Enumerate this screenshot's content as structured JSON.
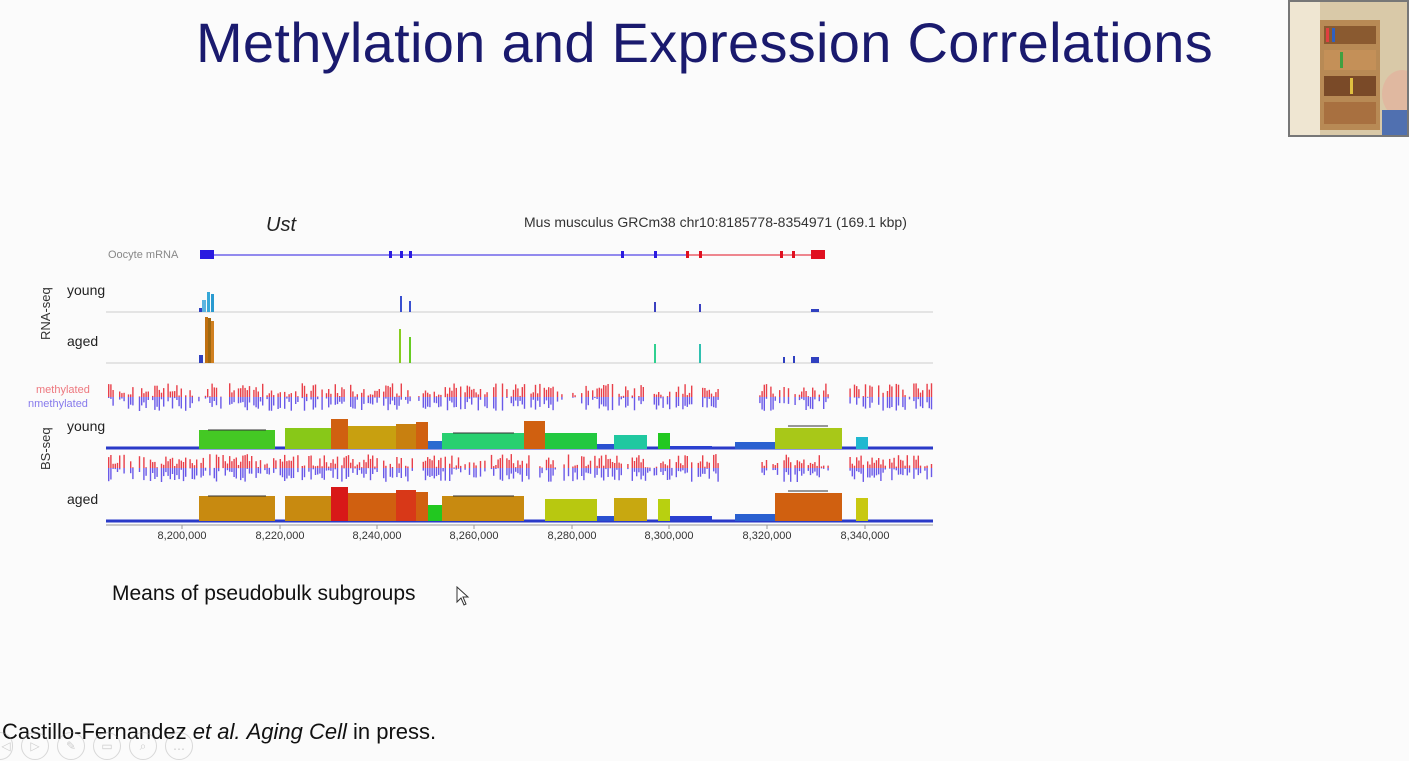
{
  "slide": {
    "title": "Methylation and Expression Correlations",
    "caption": "Means of pseudobulk subgroups",
    "citation": {
      "authors": "Castillo-Fernandez",
      "etal": "et al.",
      "journal": "Aging Cell",
      "status": "in press."
    }
  },
  "figure": {
    "gene": "Ust",
    "genome": "Mus musculus GRCm38 chr10:8185778-8354971 (169.1 kbp)",
    "track_oocyte": "Oocyte mRNA",
    "group_rnaseq": "RNA-seq",
    "group_bsseq": "BS-seq",
    "label_young": "young",
    "label_aged": "aged",
    "label_methylated": "methylated",
    "label_unmethylated": "nmethylated",
    "x_ticks": [
      "8,200,000",
      "8,220,000",
      "8,240,000",
      "8,260,000",
      "8,280,000",
      "8,300,000",
      "8,320,000",
      "8,340,000"
    ]
  },
  "colors": {
    "title": "#1a1a6e",
    "transcript_blue": "#2a1ae0",
    "transcript_red": "#e01020",
    "methylated": "#e8404a",
    "unmethylated": "#6a5ae8"
  },
  "toolbar": {
    "icons": [
      "prev-icon",
      "play-icon",
      "pen-icon",
      "slides-icon",
      "zoom-icon",
      "more-icon"
    ],
    "glyphs": [
      "◁",
      "▷",
      "✎",
      "▭",
      "⌕",
      "…"
    ]
  }
}
